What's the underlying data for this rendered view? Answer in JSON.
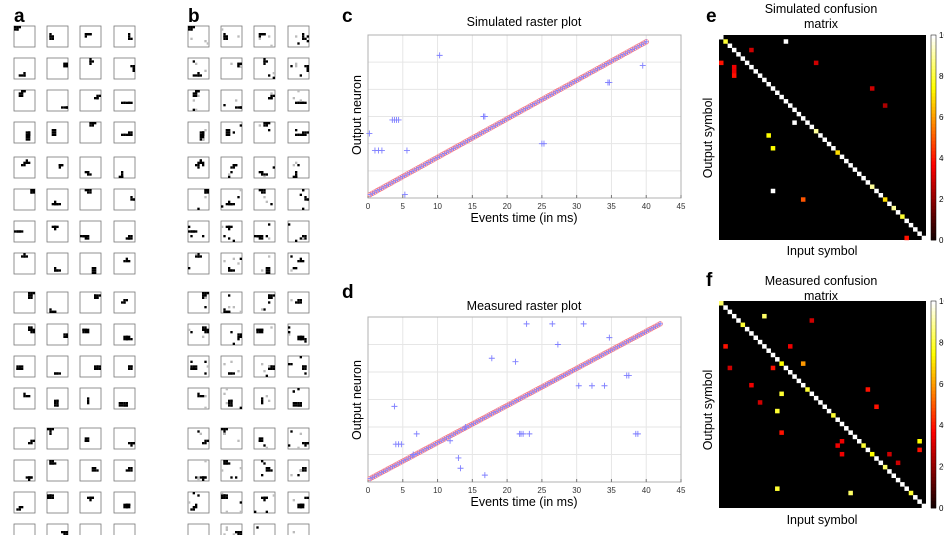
{
  "panels": {
    "a": "a",
    "b": "b",
    "c": "c",
    "d": "d",
    "e": "e",
    "f": "f"
  },
  "raster_c": {
    "title": "Simulated raster plot",
    "xlabel": "Events time (in ms)",
    "ylabel": "Output neuron"
  },
  "raster_d": {
    "title": "Measured raster plot",
    "xlabel": "Events time (in ms)",
    "ylabel": "Output neuron"
  },
  "matrix_e": {
    "title_line1": "Simulated confusion",
    "title_line2": "matrix",
    "xlabel": "Input symbol",
    "ylabel": "Output symbol"
  },
  "matrix_f": {
    "title_line1": "Measured confusion",
    "title_line2": "matrix",
    "xlabel": "Input symbol",
    "ylabel": "Output symbol"
  },
  "colors": {
    "diag_marker": "#ff8080",
    "spike_marker": "#7f7fff",
    "grid": "#e6e6e6"
  },
  "chart_data": [
    {
      "id": "c",
      "type": "scatter",
      "title": "Simulated raster plot",
      "xlabel": "Events time (in ms)",
      "ylabel": "Output neuron",
      "xlim": [
        0,
        45
      ],
      "xticks": [
        0,
        5,
        10,
        15,
        20,
        25,
        30,
        35,
        40,
        45
      ],
      "ylim": [
        0,
        48
      ],
      "diagonal": {
        "x_start": 0.3,
        "x_end": 40.0,
        "count": 120,
        "y_start": 1,
        "y_end": 46
      },
      "outliers": [
        [
          0.2,
          19
        ],
        [
          1.0,
          14
        ],
        [
          1.5,
          14
        ],
        [
          2.0,
          14
        ],
        [
          3.5,
          23
        ],
        [
          3.8,
          23
        ],
        [
          4.1,
          23
        ],
        [
          4.4,
          23
        ],
        [
          5.6,
          14
        ],
        [
          5.3,
          1
        ],
        [
          10.3,
          42
        ],
        [
          16.6,
          24
        ],
        [
          16.8,
          24
        ],
        [
          25.0,
          16
        ],
        [
          25.3,
          16
        ],
        [
          34.5,
          34
        ],
        [
          34.7,
          34
        ],
        [
          39.5,
          39
        ]
      ]
    },
    {
      "id": "d",
      "type": "scatter",
      "title": "Measured raster plot",
      "xlabel": "Events time (in ms)",
      "ylabel": "Output neuron",
      "xlim": [
        0,
        45
      ],
      "xticks": [
        0,
        5,
        10,
        15,
        20,
        25,
        30,
        35,
        40,
        45
      ],
      "ylim": [
        0,
        48
      ],
      "diagonal": {
        "x_start": 0.3,
        "x_end": 42.0,
        "count": 130,
        "y_start": 1,
        "y_end": 46
      },
      "outliers": [
        [
          3.8,
          22
        ],
        [
          4.0,
          11
        ],
        [
          4.4,
          11
        ],
        [
          4.8,
          11
        ],
        [
          6.5,
          8
        ],
        [
          7.0,
          14
        ],
        [
          11.8,
          12
        ],
        [
          13.0,
          7
        ],
        [
          13.3,
          4
        ],
        [
          14.0,
          16
        ],
        [
          16.8,
          2
        ],
        [
          17.8,
          36
        ],
        [
          21.2,
          35
        ],
        [
          21.8,
          14
        ],
        [
          22.0,
          14
        ],
        [
          22.3,
          14
        ],
        [
          22.8,
          46
        ],
        [
          23.2,
          14
        ],
        [
          26.5,
          46
        ],
        [
          27.3,
          40
        ],
        [
          30.3,
          28
        ],
        [
          31.0,
          46
        ],
        [
          32.2,
          28
        ],
        [
          34.0,
          28
        ],
        [
          34.7,
          42
        ],
        [
          37.2,
          31
        ],
        [
          37.5,
          31
        ],
        [
          38.5,
          14
        ],
        [
          38.8,
          14
        ]
      ]
    },
    {
      "id": "e",
      "type": "heatmap",
      "title": "Simulated confusion matrix",
      "xlabel": "Input symbol",
      "ylabel": "Output symbol",
      "size": 48,
      "clim": [
        0,
        100
      ],
      "colorbar_ticks": [
        0,
        20,
        40,
        60,
        80,
        100
      ],
      "diag_default": 100,
      "diag_overrides": [
        [
          1,
          80
        ],
        [
          22,
          90
        ],
        [
          27,
          70
        ],
        [
          35,
          90
        ],
        [
          38,
          70
        ],
        [
          40,
          90
        ],
        [
          42,
          80
        ]
      ],
      "offdiag": [
        [
          0,
          6,
          40
        ],
        [
          3,
          7,
          35
        ],
        [
          3,
          8,
          35
        ],
        [
          3,
          9,
          40
        ],
        [
          7,
          3,
          30
        ],
        [
          11,
          23,
          75
        ],
        [
          12,
          26,
          75
        ],
        [
          15,
          1,
          100
        ],
        [
          17,
          20,
          100
        ],
        [
          19,
          38,
          50
        ],
        [
          12,
          36,
          100
        ],
        [
          22,
          6,
          30
        ],
        [
          35,
          12,
          30
        ],
        [
          38,
          16,
          25
        ],
        [
          43,
          47,
          40
        ]
      ]
    },
    {
      "id": "f",
      "type": "heatmap",
      "title": "Measured confusion matrix",
      "xlabel": "Input symbol",
      "ylabel": "Output symbol",
      "size": 48,
      "clim": [
        0,
        100
      ],
      "colorbar_ticks": [
        0,
        20,
        40,
        60,
        80,
        100
      ],
      "diag_default": 100,
      "diag_overrides": [
        [
          0,
          85
        ],
        [
          5,
          80
        ],
        [
          14,
          75
        ],
        [
          20,
          80
        ],
        [
          26,
          80
        ],
        [
          33,
          80
        ],
        [
          35,
          75
        ],
        [
          38,
          85
        ],
        [
          44,
          80
        ]
      ],
      "offdiag": [
        [
          1,
          10,
          40
        ],
        [
          2,
          15,
          30
        ],
        [
          7,
          19,
          35
        ],
        [
          9,
          23,
          30
        ],
        [
          10,
          3,
          85
        ],
        [
          12,
          15,
          40
        ],
        [
          13,
          25,
          80
        ],
        [
          14,
          21,
          80
        ],
        [
          14,
          30,
          40
        ],
        [
          13,
          43,
          80
        ],
        [
          16,
          10,
          35
        ],
        [
          19,
          14,
          60
        ],
        [
          21,
          4,
          30
        ],
        [
          27,
          33,
          35
        ],
        [
          28,
          32,
          35
        ],
        [
          28,
          35,
          35
        ],
        [
          30,
          44,
          85
        ],
        [
          34,
          20,
          40
        ],
        [
          36,
          24,
          40
        ],
        [
          39,
          35,
          30
        ],
        [
          41,
          37,
          30
        ],
        [
          46,
          32,
          75
        ],
        [
          46,
          34,
          40
        ]
      ]
    }
  ]
}
